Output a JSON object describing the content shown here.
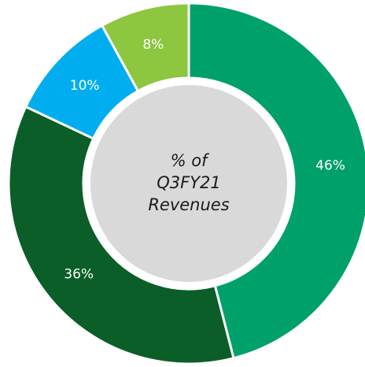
{
  "chart_data": {
    "type": "donut",
    "center_lines": [
      "% of",
      "Q3FY21",
      "Revenues"
    ],
    "values": [
      46,
      36,
      10,
      8
    ],
    "value_labels": [
      "46%",
      "36%",
      "10%",
      "8%"
    ],
    "colors": [
      "#00a06b",
      "#0b5e27",
      "#00aeef",
      "#8dc63f"
    ]
  }
}
